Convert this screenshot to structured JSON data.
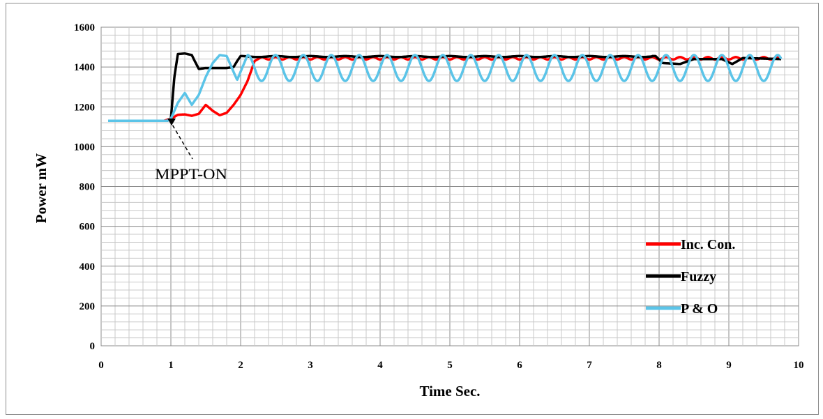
{
  "chart_data": {
    "type": "line",
    "xlabel": "Time   Sec.",
    "ylabel": "Power   mW",
    "xlim": [
      0,
      10
    ],
    "ylim": [
      0,
      1600
    ],
    "x_ticks": [
      "0",
      "1",
      "2",
      "3",
      "4",
      "5",
      "6",
      "7",
      "8",
      "9",
      "10"
    ],
    "y_ticks": [
      "0",
      "200",
      "400",
      "600",
      "800",
      "1000",
      "1200",
      "1400",
      "1600"
    ],
    "grid": true,
    "legend_position": "right",
    "annotation": {
      "text": "MPPT-ON",
      "x": 1.0,
      "y": 1140
    },
    "series": [
      {
        "name": "Inc. Con.",
        "color": "#ff0000",
        "points": [
          [
            0.1,
            1130
          ],
          [
            0.9,
            1130
          ],
          [
            1.0,
            1140
          ],
          [
            1.1,
            1160
          ],
          [
            1.2,
            1162
          ],
          [
            1.3,
            1155
          ],
          [
            1.4,
            1165
          ],
          [
            1.5,
            1210
          ],
          [
            1.6,
            1180
          ],
          [
            1.7,
            1158
          ],
          [
            1.8,
            1170
          ],
          [
            1.9,
            1210
          ],
          [
            2.0,
            1260
          ],
          [
            2.1,
            1330
          ],
          [
            2.2,
            1430
          ],
          [
            2.3,
            1450
          ],
          [
            9.75,
            1450
          ]
        ],
        "oscillation": {
          "start": 2.3,
          "end": 9.75,
          "period": 0.2,
          "amplitude": 12
        }
      },
      {
        "name": "Fuzzy",
        "color": "#000000",
        "points": [
          [
            0.1,
            1130
          ],
          [
            0.95,
            1130
          ],
          [
            1.0,
            1140
          ],
          [
            1.05,
            1350
          ],
          [
            1.1,
            1465
          ],
          [
            1.2,
            1468
          ],
          [
            1.3,
            1460
          ],
          [
            1.4,
            1390
          ],
          [
            1.5,
            1395
          ],
          [
            1.8,
            1395
          ],
          [
            1.9,
            1400
          ],
          [
            1.95,
            1430
          ],
          [
            2.0,
            1455
          ],
          [
            7.95,
            1455
          ],
          [
            8.05,
            1420
          ],
          [
            8.3,
            1415
          ],
          [
            8.5,
            1440
          ],
          [
            8.9,
            1440
          ],
          [
            9.05,
            1415
          ],
          [
            9.2,
            1445
          ],
          [
            9.75,
            1440
          ]
        ],
        "oscillation": {
          "start": 2.0,
          "end": 7.9,
          "period": 0.5,
          "amplitude": 5
        }
      },
      {
        "name": "P & O",
        "color": "#5bc4e8",
        "points": [
          [
            0.1,
            1130
          ],
          [
            0.95,
            1130
          ],
          [
            1.0,
            1140
          ],
          [
            1.1,
            1220
          ],
          [
            1.2,
            1270
          ],
          [
            1.3,
            1210
          ],
          [
            1.4,
            1260
          ],
          [
            1.5,
            1350
          ],
          [
            1.6,
            1420
          ],
          [
            1.7,
            1460
          ],
          [
            1.8,
            1455
          ],
          [
            1.85,
            1415
          ],
          [
            1.95,
            1335
          ],
          [
            2.1,
            1460
          ],
          [
            9.75,
            1460
          ]
        ],
        "oscillation": {
          "start": 2.1,
          "end": 9.75,
          "period": 0.4,
          "amplitude": 65,
          "center": 1395
        }
      }
    ]
  }
}
